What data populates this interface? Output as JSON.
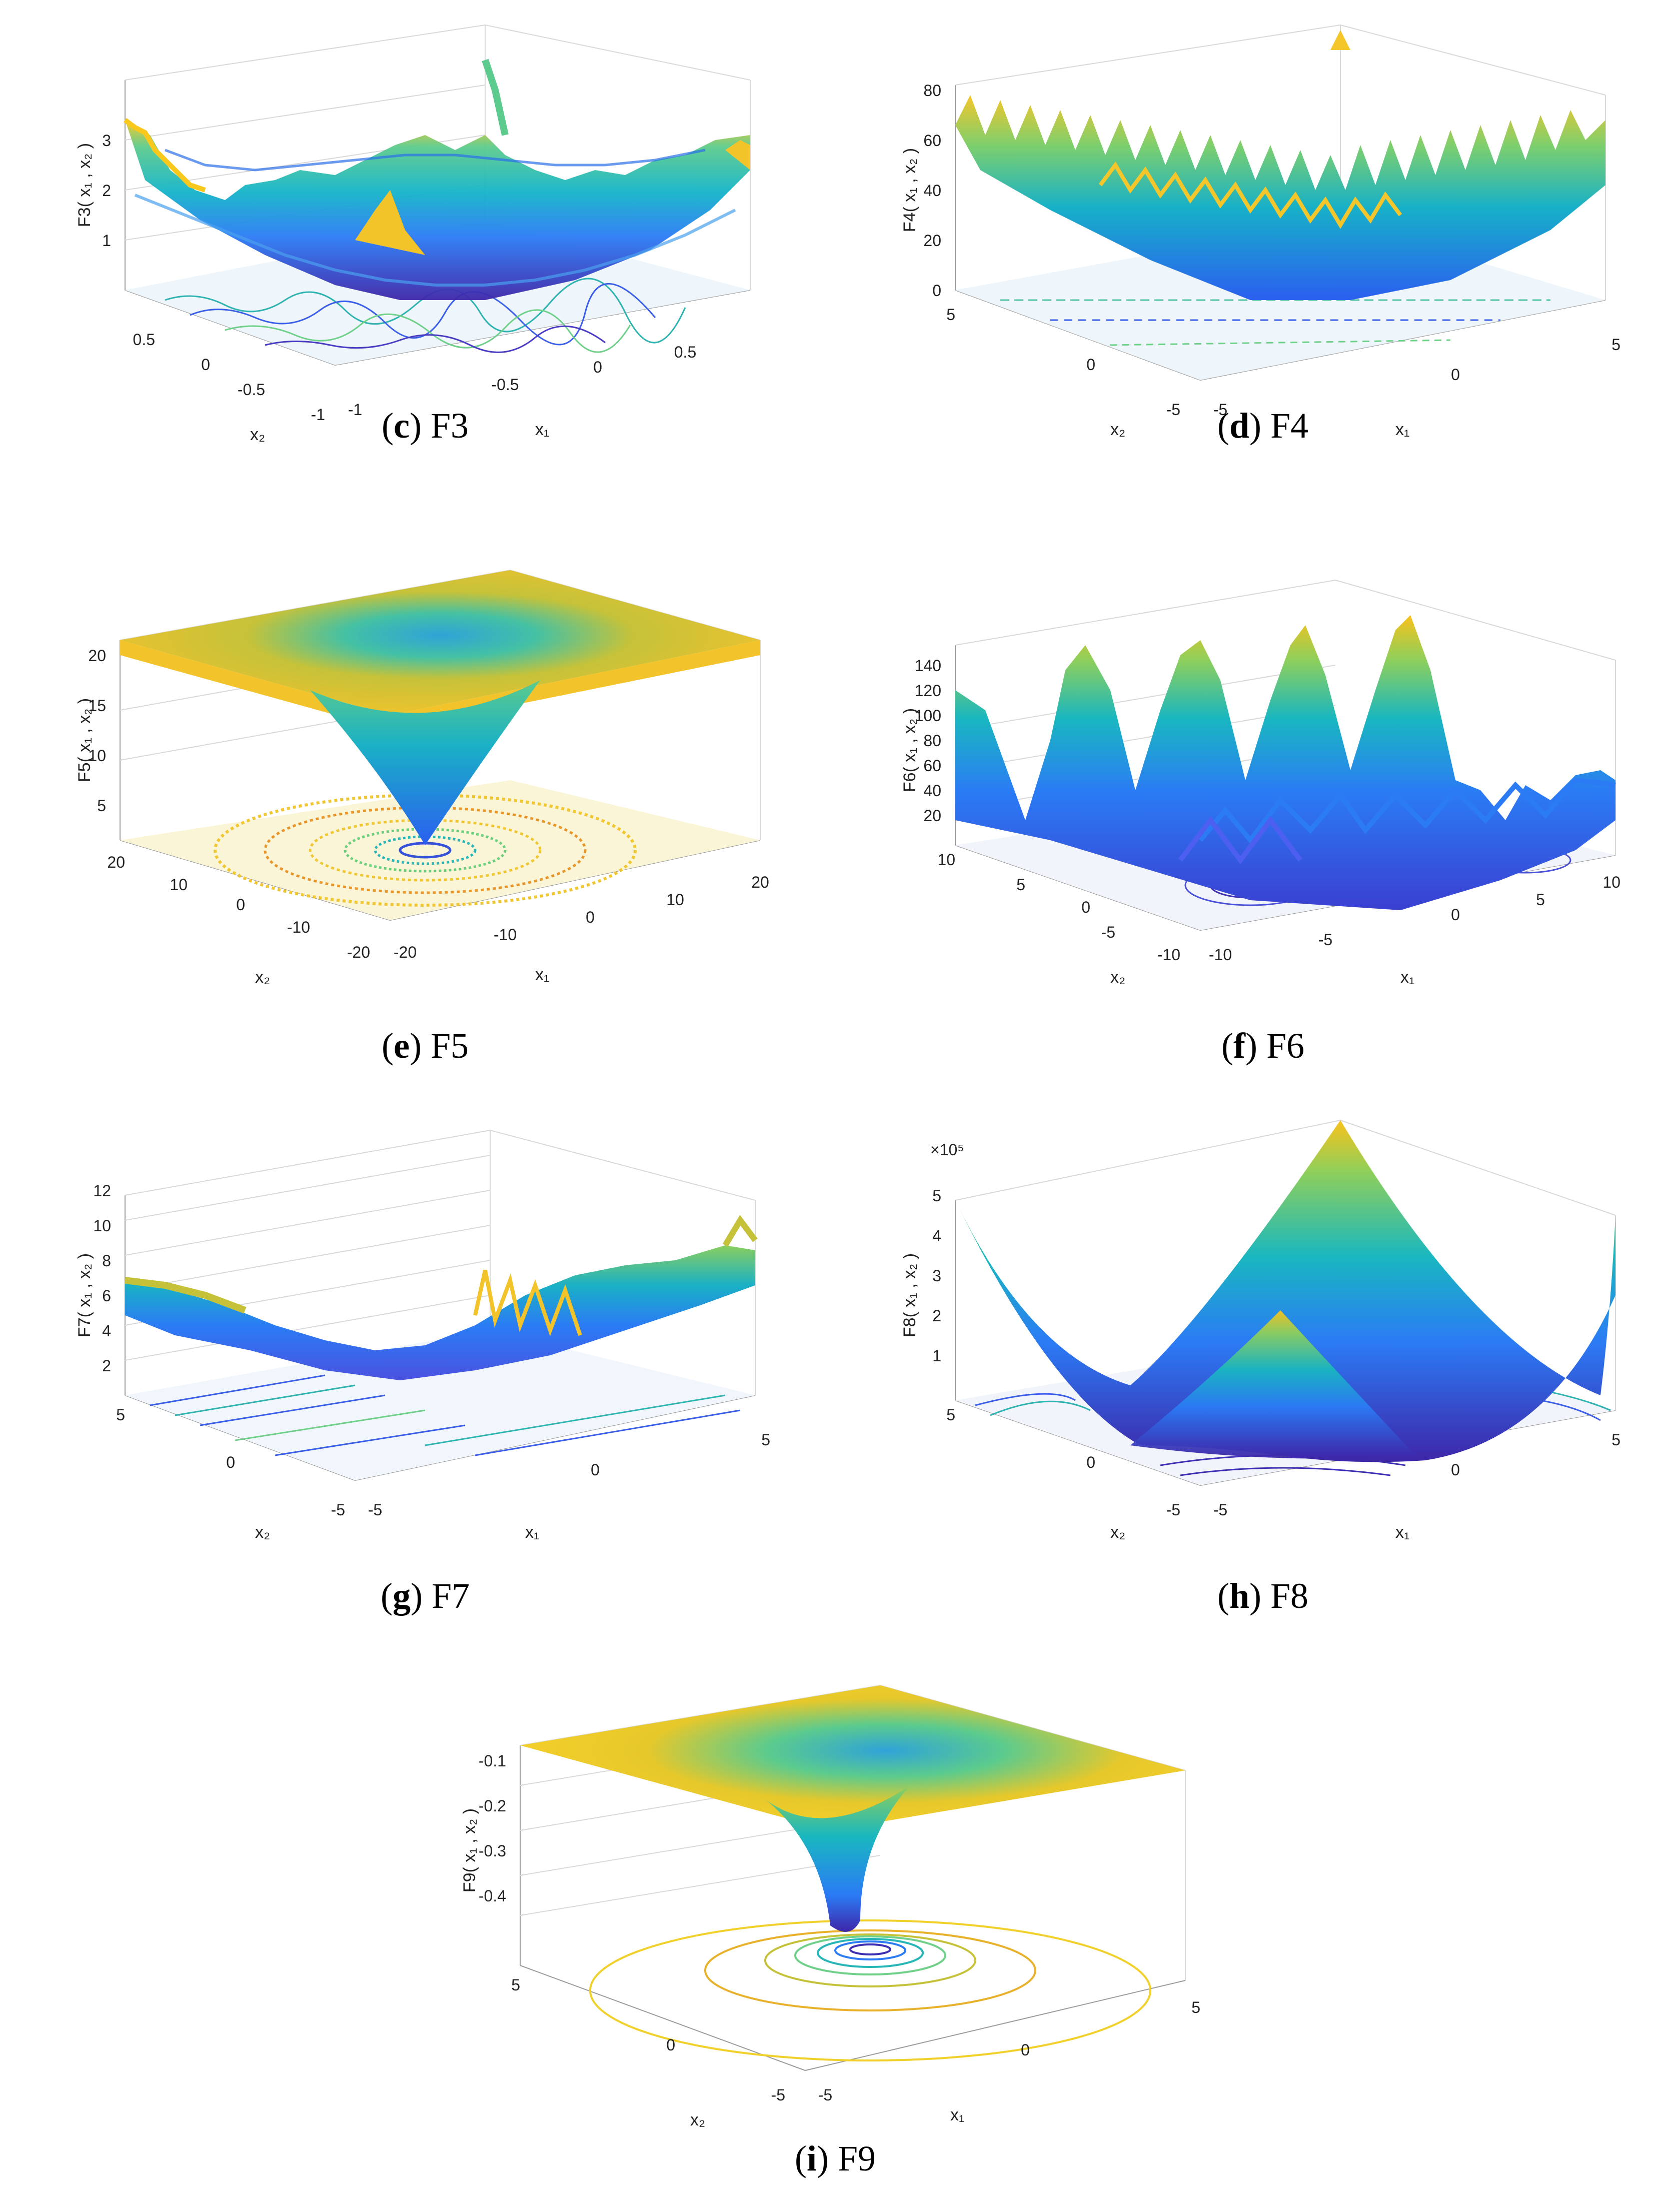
{
  "panels": [
    {
      "id": "c",
      "letter": "c",
      "name": "F3",
      "zlabel": "F3( x₁ , x₂ )",
      "xlabel": "x₁",
      "ylabel": "x₂",
      "xticks": [
        "-1",
        "-0.5",
        "0",
        "0.5"
      ],
      "yticks": [
        "-1",
        "-0.5",
        "0",
        "0.5"
      ],
      "zticks": [
        "1",
        "2",
        "3"
      ],
      "multiplier": ""
    },
    {
      "id": "d",
      "letter": "d",
      "name": "F4",
      "zlabel": "F4( x₁ , x₂ )",
      "xlabel": "x₁",
      "ylabel": "x₂",
      "xticks": [
        "-5",
        "0",
        "5"
      ],
      "yticks": [
        "-5",
        "0",
        "5"
      ],
      "zticks": [
        "0",
        "20",
        "40",
        "60",
        "80"
      ],
      "multiplier": ""
    },
    {
      "id": "e",
      "letter": "e",
      "name": "F5",
      "zlabel": "F5( x₁ , x₂ )",
      "xlabel": "x₁",
      "ylabel": "x₂",
      "xticks": [
        "-20",
        "-10",
        "0",
        "10",
        "20"
      ],
      "yticks": [
        "-20",
        "-10",
        "0",
        "10",
        "20"
      ],
      "zticks": [
        "5",
        "10",
        "15",
        "20"
      ],
      "multiplier": ""
    },
    {
      "id": "f",
      "letter": "f",
      "name": "F6",
      "zlabel": "F6( x₁ , x₂ )",
      "xlabel": "x₁",
      "ylabel": "x₂",
      "xticks": [
        "-10",
        "-5",
        "0",
        "5",
        "10"
      ],
      "yticks": [
        "-10",
        "-5",
        "0",
        "5",
        "10"
      ],
      "zticks": [
        "20",
        "40",
        "60",
        "80",
        "100",
        "120",
        "140"
      ],
      "multiplier": ""
    },
    {
      "id": "g",
      "letter": "g",
      "name": "F7",
      "zlabel": "F7( x₁ , x₂ )",
      "xlabel": "x₁",
      "ylabel": "x₂",
      "xticks": [
        "-5",
        "0",
        "5"
      ],
      "yticks": [
        "-5",
        "0",
        "5"
      ],
      "zticks": [
        "2",
        "4",
        "6",
        "8",
        "10",
        "12"
      ],
      "multiplier": ""
    },
    {
      "id": "h",
      "letter": "h",
      "name": "F8",
      "zlabel": "F8( x₁ , x₂ )",
      "xlabel": "x₁",
      "ylabel": "x₂",
      "xticks": [
        "-5",
        "0",
        "5"
      ],
      "yticks": [
        "-5",
        "0",
        "5"
      ],
      "zticks": [
        "1",
        "2",
        "3",
        "4",
        "5"
      ],
      "multiplier": "×10⁵"
    },
    {
      "id": "i",
      "letter": "i",
      "name": "F9",
      "zlabel": "F9( x₁ , x₂ )",
      "xlabel": "x₁",
      "ylabel": "x₂",
      "xticks": [
        "-5",
        "0",
        "5"
      ],
      "yticks": [
        "-5",
        "0",
        "5"
      ],
      "zticks": [
        "-0.4",
        "-0.3",
        "-0.2",
        "-0.1"
      ],
      "multiplier": ""
    }
  ],
  "chart_data": [
    {
      "type": "surface",
      "title": "F3",
      "xlabel": "x1",
      "ylabel": "x2",
      "zlabel": "F3( x1 , x2 )",
      "xlim": [
        -1,
        1
      ],
      "ylim": [
        -1,
        1
      ],
      "zlim": [
        0,
        3.5
      ],
      "xticks": [
        -1,
        -0.5,
        0,
        0.5
      ],
      "yticks": [
        -1,
        -0.5,
        0,
        0.5
      ],
      "zticks": [
        1,
        2,
        3
      ],
      "grid": true,
      "contour_below": true
    },
    {
      "type": "surface",
      "title": "F4",
      "xlabel": "x1",
      "ylabel": "x2",
      "zlabel": "F4( x1 , x2 )",
      "xlim": [
        -5,
        5
      ],
      "ylim": [
        -5,
        5
      ],
      "zlim": [
        0,
        80
      ],
      "xticks": [
        -5,
        0,
        5
      ],
      "yticks": [
        -5,
        0,
        5
      ],
      "zticks": [
        0,
        20,
        40,
        60,
        80
      ],
      "grid": true,
      "contour_below": true
    },
    {
      "type": "surface",
      "title": "F5",
      "xlabel": "x1",
      "ylabel": "x2",
      "zlabel": "F5( x1 , x2 )",
      "xlim": [
        -20,
        20
      ],
      "ylim": [
        -20,
        20
      ],
      "zlim": [
        0,
        22
      ],
      "xticks": [
        -20,
        -10,
        0,
        10,
        20
      ],
      "yticks": [
        -20,
        -10,
        0,
        10,
        20
      ],
      "zticks": [
        5,
        10,
        15,
        20
      ],
      "grid": true,
      "contour_below": true
    },
    {
      "type": "surface",
      "title": "F6",
      "xlabel": "x1",
      "ylabel": "x2",
      "zlabel": "F6( x1 , x2 )",
      "xlim": [
        -10,
        10
      ],
      "ylim": [
        -10,
        10
      ],
      "zlim": [
        0,
        145
      ],
      "xticks": [
        -10,
        -5,
        0,
        5,
        10
      ],
      "yticks": [
        -10,
        -5,
        0,
        5,
        10
      ],
      "zticks": [
        20,
        40,
        60,
        80,
        100,
        120,
        140
      ],
      "grid": true,
      "contour_below": true
    },
    {
      "type": "surface",
      "title": "F7",
      "xlabel": "x1",
      "ylabel": "x2",
      "zlabel": "F7( x1 , x2 )",
      "xlim": [
        -5,
        5
      ],
      "ylim": [
        -5,
        5
      ],
      "zlim": [
        0,
        13
      ],
      "xticks": [
        -5,
        0,
        5
      ],
      "yticks": [
        -5,
        0,
        5
      ],
      "zticks": [
        2,
        4,
        6,
        8,
        10,
        12
      ],
      "grid": true,
      "contour_below": true
    },
    {
      "type": "surface",
      "title": "F8",
      "xlabel": "x1",
      "ylabel": "x2",
      "zlabel": "F8( x1 , x2 )",
      "xlim": [
        -5,
        5
      ],
      "ylim": [
        -5,
        5
      ],
      "zlim": [
        0,
        5.5
      ],
      "zscale": "x10^5",
      "xticks": [
        -5,
        0,
        5
      ],
      "yticks": [
        -5,
        0,
        5
      ],
      "zticks": [
        1,
        2,
        3,
        4,
        5
      ],
      "grid": true,
      "contour_below": true
    },
    {
      "type": "surface",
      "title": "F9",
      "xlabel": "x1",
      "ylabel": "x2",
      "zlabel": "F9( x1 , x2 )",
      "xlim": [
        -5,
        5
      ],
      "ylim": [
        -5,
        5
      ],
      "zlim": [
        -0.5,
        -0.05
      ],
      "xticks": [
        -5,
        0,
        5
      ],
      "yticks": [
        -5,
        0,
        5
      ],
      "zticks": [
        -0.4,
        -0.3,
        -0.2,
        -0.1
      ],
      "grid": true,
      "contour_below": true
    }
  ],
  "colors": {
    "low": "#3e26a8",
    "mid1": "#2b7bf5",
    "mid2": "#14b4c9",
    "mid3": "#5ccb8d",
    "high1": "#c6c432",
    "high2": "#f9fb15"
  }
}
